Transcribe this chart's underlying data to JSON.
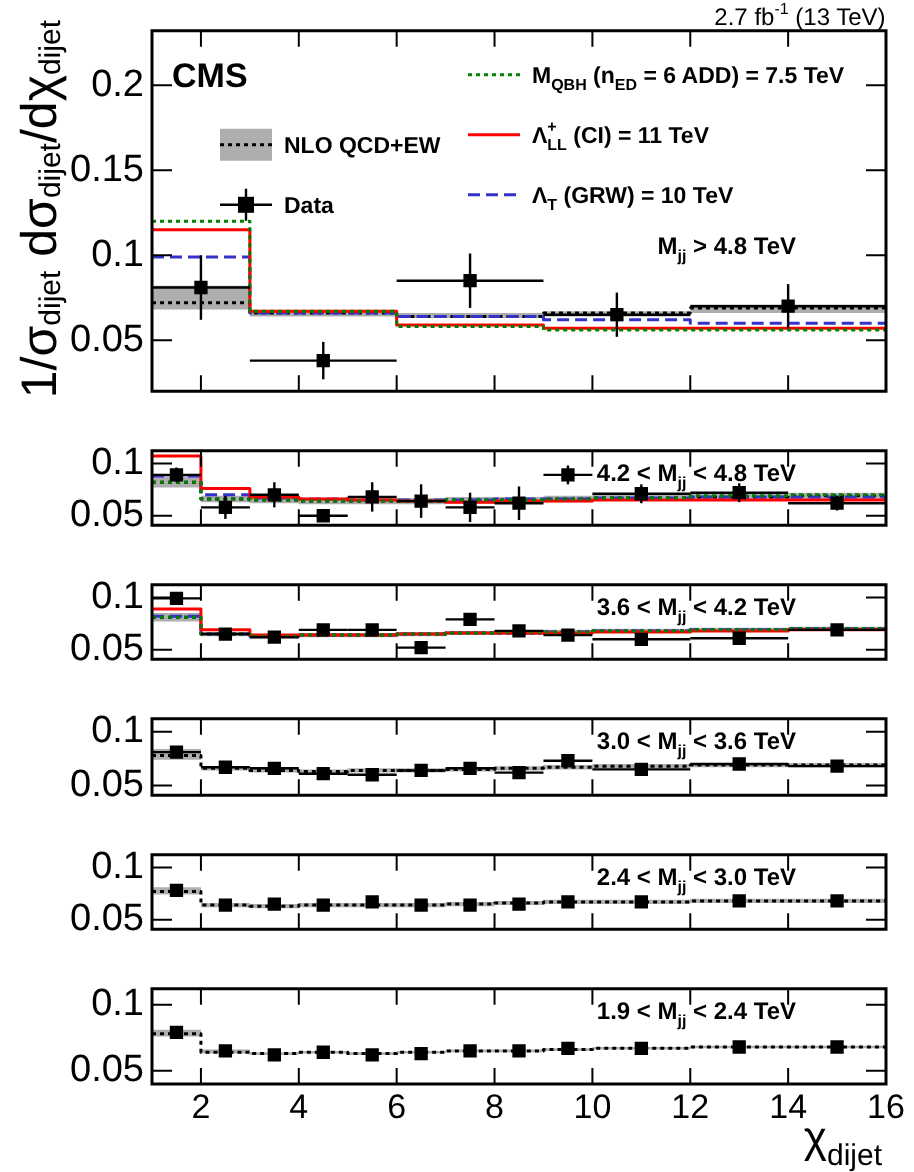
{
  "chart_data": [
    {
      "type": "step",
      "xlim": [
        1,
        16
      ],
      "xticks": [
        2,
        4,
        6,
        8,
        10,
        12,
        14,
        16
      ],
      "ylim": [
        0.02,
        0.232
      ],
      "yticks": [
        0.05,
        0.1,
        0.15,
        0.2
      ],
      "tick_labels": "y",
      "legend": "top",
      "ylabel": "1/σ$_{dijet}$ dσ$_{dijet}$/dχ$_{dijet}$",
      "annotations": [
        "CMS",
        "2.7 fb$^{-1}$ (13 TeV)",
        "M$_{jj}$ > 4.8 TeV"
      ],
      "series": [
        {
          "name": "NLO QCD+EW",
          "type": "step",
          "color": "#000000",
          "line_style": "dotted",
          "x": [
            1,
            3,
            6,
            9,
            12,
            16
          ],
          "values": [
            0.072,
            0.066,
            0.064,
            0.066,
            0.069,
            0.069
          ],
          "lower": [
            0.068,
            0.064,
            0.063,
            0.064,
            0.066,
            0.066
          ],
          "upper": [
            0.082,
            0.067,
            0.066,
            0.067,
            0.071,
            0.071
          ]
        },
        {
          "name": "Data",
          "type": "scatter",
          "color": "#000000",
          "marker": "square",
          "x": [
            2,
            4.5,
            7.5,
            10.5,
            14
          ],
          "values": [
            0.081,
            0.038,
            0.085,
            0.065,
            0.07
          ],
          "errors": [
            0.019,
            0.011,
            0.016,
            0.013,
            0.013
          ],
          "xerrors": [
            1,
            1.5,
            1.5,
            1.5,
            2
          ]
        },
        {
          "name": "M$_{QBH}$ (n$_{ED}$ = 6 ADD) = 7.5 TeV",
          "type": "step",
          "color": "#008000",
          "line_style": "dotted",
          "x": [
            1,
            3,
            6,
            9,
            12,
            16
          ],
          "values": [
            0.12,
            0.067,
            0.058,
            0.056,
            0.056,
            0.056
          ]
        },
        {
          "name": "Λ$^{+}$$_{LL}$ (CI) = 11 TeV",
          "type": "step",
          "color": "#ff0000",
          "line_style": "solid",
          "x": [
            1,
            3,
            6,
            9,
            12,
            16
          ],
          "values": [
            0.115,
            0.067,
            0.059,
            0.057,
            0.057,
            0.057
          ]
        },
        {
          "name": "Λ$_{T}$ (GRW) = 10 TeV",
          "type": "step",
          "color": "#3333cc",
          "line_style": "dashed",
          "x": [
            1,
            3,
            6,
            9,
            12,
            16
          ],
          "values": [
            0.099,
            0.066,
            0.064,
            0.062,
            0.06,
            0.06
          ]
        }
      ]
    },
    {
      "type": "step",
      "xlim": [
        1,
        16
      ],
      "xticks": [
        2,
        4,
        6,
        8,
        10,
        12,
        14,
        16
      ],
      "ylim": [
        0.041,
        0.112
      ],
      "yticks": [
        0.05,
        0.1
      ],
      "tick_labels": "y",
      "annotations": [
        "4.2 < M$_{jj}$ < 4.8 TeV"
      ],
      "series": [
        {
          "type": "step",
          "color": "#000000",
          "line_style": "dotted",
          "x": [
            1,
            2,
            3,
            4,
            5,
            6,
            7,
            8,
            9,
            10,
            12,
            14,
            16
          ],
          "values": [
            0.082,
            0.066,
            0.065,
            0.064,
            0.064,
            0.064,
            0.065,
            0.065,
            0.066,
            0.067,
            0.068,
            0.069,
            0.069
          ],
          "lower": [
            0.077,
            0.063,
            0.062,
            0.061,
            0.061,
            0.061,
            0.062,
            0.062,
            0.063,
            0.064,
            0.065,
            0.066,
            0.066
          ],
          "upper": [
            0.088,
            0.069,
            0.068,
            0.067,
            0.067,
            0.067,
            0.068,
            0.068,
            0.069,
            0.07,
            0.071,
            0.072,
            0.072
          ]
        },
        {
          "type": "scatter",
          "color": "#000000",
          "marker": "square",
          "x": [
            1.5,
            2.5,
            3.5,
            4.5,
            5.5,
            6.5,
            7.5,
            8.5,
            9.5,
            11,
            13,
            15
          ],
          "values": [
            0.089,
            0.058,
            0.07,
            0.05,
            0.068,
            0.064,
            0.058,
            0.062,
            0.089,
            0.071,
            0.072,
            0.062
          ],
          "errors": [
            0.007,
            0.011,
            0.012,
            null,
            0.014,
            0.016,
            0.014,
            0.016,
            0.009,
            0.009,
            0.009,
            0.007
          ],
          "xerrors": [
            0.5,
            0.5,
            0.5,
            0.5,
            0.5,
            0.5,
            0.5,
            0.5,
            0.5,
            1,
            1,
            1
          ]
        },
        {
          "type": "step",
          "color": "#008000",
          "line_style": "dotted",
          "x": [
            1,
            2,
            3,
            4,
            5,
            6,
            7,
            8,
            9,
            10,
            12,
            14,
            16
          ],
          "values": [
            0.082,
            0.066,
            0.065,
            0.064,
            0.064,
            0.064,
            0.065,
            0.065,
            0.066,
            0.067,
            0.069,
            0.07,
            0.07
          ]
        },
        {
          "type": "step",
          "color": "#ff0000",
          "line_style": "solid",
          "x": [
            1,
            2,
            3,
            4,
            5,
            6,
            7,
            8,
            9,
            10,
            12,
            14,
            16
          ],
          "values": [
            0.107,
            0.076,
            0.068,
            0.066,
            0.065,
            0.064,
            0.063,
            0.064,
            0.064,
            0.065,
            0.065,
            0.065,
            0.065
          ]
        },
        {
          "type": "step",
          "color": "#3333cc",
          "line_style": "dashed",
          "x": [
            1,
            2,
            3,
            4,
            5,
            6,
            7,
            8,
            9,
            10,
            12,
            14,
            16
          ],
          "values": [
            0.088,
            0.07,
            0.067,
            0.066,
            0.065,
            0.065,
            0.065,
            0.066,
            0.066,
            0.067,
            0.068,
            0.068,
            0.068
          ]
        }
      ]
    },
    {
      "type": "step",
      "xlim": [
        1,
        16
      ],
      "xticks": [
        2,
        4,
        6,
        8,
        10,
        12,
        14,
        16
      ],
      "ylim": [
        0.041,
        0.112
      ],
      "yticks": [
        0.05,
        0.1
      ],
      "tick_labels": "y",
      "annotations": [
        "3.6 < M$_{jj}$ < 4.2 TeV"
      ],
      "series": [
        {
          "type": "step",
          "color": "#000000",
          "line_style": "dotted",
          "x": [
            1,
            2,
            3,
            4,
            5,
            6,
            7,
            8,
            9,
            10,
            12,
            14,
            16
          ],
          "values": [
            0.081,
            0.065,
            0.063,
            0.064,
            0.064,
            0.065,
            0.066,
            0.066,
            0.067,
            0.068,
            0.069,
            0.07,
            0.07
          ],
          "lower": [
            0.077,
            0.063,
            0.061,
            0.062,
            0.062,
            0.063,
            0.064,
            0.064,
            0.065,
            0.066,
            0.067,
            0.068,
            0.068
          ],
          "upper": [
            0.085,
            0.067,
            0.065,
            0.066,
            0.066,
            0.067,
            0.068,
            0.068,
            0.069,
            0.07,
            0.071,
            0.072,
            0.072
          ]
        },
        {
          "type": "scatter",
          "color": "#000000",
          "marker": "square",
          "x": [
            1.5,
            2.5,
            3.5,
            4.5,
            5.5,
            6.5,
            7.5,
            8.5,
            9.5,
            11,
            13,
            15
          ],
          "values": [
            0.099,
            0.065,
            0.062,
            0.069,
            0.069,
            0.052,
            0.079,
            0.068,
            0.064,
            0.06,
            0.061,
            0.069
          ],
          "errors": [
            0.006,
            0.004,
            0.004,
            0.004,
            0.004,
            0.004,
            0.005,
            0.004,
            0.004,
            0.004,
            0.004,
            0.004
          ],
          "xerrors": [
            0.5,
            0.5,
            0.5,
            0.5,
            0.5,
            0.5,
            0.5,
            0.5,
            0.5,
            1,
            1,
            1
          ]
        },
        {
          "type": "step",
          "color": "#008000",
          "line_style": "dotted",
          "x": [
            1,
            2,
            3,
            4,
            5,
            6,
            7,
            8,
            9,
            10,
            12,
            14,
            16
          ],
          "values": [
            0.081,
            0.065,
            0.063,
            0.064,
            0.064,
            0.065,
            0.066,
            0.067,
            0.067,
            0.068,
            0.069,
            0.07,
            0.07
          ]
        },
        {
          "type": "step",
          "color": "#ff0000",
          "line_style": "solid",
          "x": [
            1,
            2,
            3,
            4,
            5,
            6,
            7,
            8,
            9,
            10,
            12,
            14,
            16
          ],
          "values": [
            0.089,
            0.069,
            0.064,
            0.064,
            0.064,
            0.065,
            0.066,
            0.066,
            0.066,
            0.067,
            0.068,
            0.069,
            0.069
          ]
        },
        {
          "type": "step",
          "color": "#3333cc",
          "line_style": "dashed",
          "x": [
            1,
            2,
            3,
            4,
            5,
            6,
            7,
            8,
            9,
            10,
            12,
            14,
            16
          ],
          "values": [
            0.082,
            0.065,
            0.063,
            0.064,
            0.064,
            0.065,
            0.066,
            0.066,
            0.067,
            0.068,
            0.069,
            0.07,
            0.07
          ]
        }
      ]
    },
    {
      "type": "step",
      "xlim": [
        1,
        16
      ],
      "xticks": [
        2,
        4,
        6,
        8,
        10,
        12,
        14,
        16
      ],
      "ylim": [
        0.041,
        0.112
      ],
      "yticks": [
        0.05,
        0.1
      ],
      "tick_labels": "y",
      "annotations": [
        "3.0 < M$_{jj}$ < 3.6 TeV"
      ],
      "series": [
        {
          "type": "step",
          "color": "#000000",
          "line_style": "dotted",
          "x": [
            1,
            2,
            3,
            4,
            5,
            6,
            7,
            8,
            9,
            10,
            12,
            14,
            16
          ],
          "values": [
            0.078,
            0.066,
            0.064,
            0.063,
            0.064,
            0.064,
            0.065,
            0.066,
            0.067,
            0.068,
            0.069,
            0.069,
            0.069
          ],
          "lower": [
            0.074,
            0.064,
            0.062,
            0.061,
            0.062,
            0.062,
            0.063,
            0.064,
            0.065,
            0.066,
            0.067,
            0.067,
            0.067
          ],
          "upper": [
            0.084,
            0.068,
            0.066,
            0.065,
            0.066,
            0.066,
            0.067,
            0.068,
            0.069,
            0.07,
            0.071,
            0.071,
            0.071
          ]
        },
        {
          "type": "scatter",
          "color": "#000000",
          "marker": "square",
          "x": [
            1.5,
            2.5,
            3.5,
            4.5,
            5.5,
            6.5,
            7.5,
            8.5,
            9.5,
            11,
            13,
            15
          ],
          "values": [
            0.081,
            0.067,
            0.066,
            0.061,
            0.06,
            0.064,
            0.066,
            0.062,
            0.073,
            0.065,
            0.07,
            0.068
          ],
          "xerrors": [
            0.5,
            0.5,
            0.5,
            0.5,
            0.5,
            0.5,
            0.5,
            0.5,
            0.5,
            1,
            1,
            1
          ]
        }
      ]
    },
    {
      "type": "step",
      "xlim": [
        1,
        16
      ],
      "xticks": [
        2,
        4,
        6,
        8,
        10,
        12,
        14,
        16
      ],
      "ylim": [
        0.041,
        0.112
      ],
      "yticks": [
        0.05,
        0.1
      ],
      "tick_labels": "y",
      "annotations": [
        "2.4 < M$_{jj}$ < 3.0 TeV"
      ],
      "series": [
        {
          "type": "step",
          "color": "#000000",
          "line_style": "dotted",
          "x": [
            1,
            2,
            3,
            4,
            5,
            6,
            7,
            8,
            9,
            10,
            12,
            14,
            16
          ],
          "values": [
            0.077,
            0.064,
            0.063,
            0.064,
            0.064,
            0.064,
            0.065,
            0.066,
            0.067,
            0.067,
            0.068,
            0.068,
            0.068
          ],
          "lower": [
            0.074,
            0.062,
            0.061,
            0.062,
            0.062,
            0.062,
            0.063,
            0.064,
            0.065,
            0.065,
            0.066,
            0.066,
            0.066
          ],
          "upper": [
            0.081,
            0.066,
            0.065,
            0.066,
            0.066,
            0.066,
            0.067,
            0.068,
            0.069,
            0.069,
            0.07,
            0.07,
            0.07
          ]
        },
        {
          "type": "scatter",
          "color": "#000000",
          "marker": "square",
          "x": [
            1.5,
            2.5,
            3.5,
            4.5,
            5.5,
            6.5,
            7.5,
            8.5,
            9.5,
            11,
            13,
            15
          ],
          "values": [
            0.078,
            0.064,
            0.065,
            0.064,
            0.067,
            0.064,
            0.064,
            0.065,
            0.067,
            0.067,
            0.068,
            0.068
          ]
        }
      ]
    },
    {
      "type": "step",
      "xlim": [
        1,
        16
      ],
      "xticks": [
        2,
        4,
        6,
        8,
        10,
        12,
        14,
        16
      ],
      "ylim": [
        0.04,
        0.112
      ],
      "yticks": [
        0.05,
        0.1
      ],
      "xlabel": "χ$_{dijet}$",
      "annotations": [
        "1.9 < M$_{jj}$ < 2.4 TeV"
      ],
      "series": [
        {
          "type": "step",
          "color": "#000000",
          "line_style": "dotted",
          "x": [
            1,
            2,
            3,
            4,
            5,
            6,
            7,
            8,
            9,
            10,
            12,
            14,
            16
          ],
          "values": [
            0.078,
            0.064,
            0.063,
            0.064,
            0.063,
            0.064,
            0.065,
            0.065,
            0.066,
            0.067,
            0.068,
            0.068,
            0.068
          ],
          "lower": [
            0.076,
            0.063,
            0.062,
            0.063,
            0.062,
            0.063,
            0.064,
            0.064,
            0.065,
            0.066,
            0.067,
            0.067,
            0.067
          ],
          "upper": [
            0.081,
            0.066,
            0.064,
            0.065,
            0.064,
            0.065,
            0.066,
            0.066,
            0.067,
            0.068,
            0.069,
            0.069,
            0.069
          ]
        },
        {
          "type": "scatter",
          "color": "#000000",
          "marker": "square",
          "x": [
            1.5,
            2.5,
            3.5,
            4.5,
            5.5,
            6.5,
            7.5,
            8.5,
            9.5,
            11,
            13,
            15
          ],
          "values": [
            0.079,
            0.065,
            0.062,
            0.064,
            0.062,
            0.063,
            0.065,
            0.065,
            0.067,
            0.067,
            0.068,
            0.068
          ]
        }
      ]
    }
  ]
}
